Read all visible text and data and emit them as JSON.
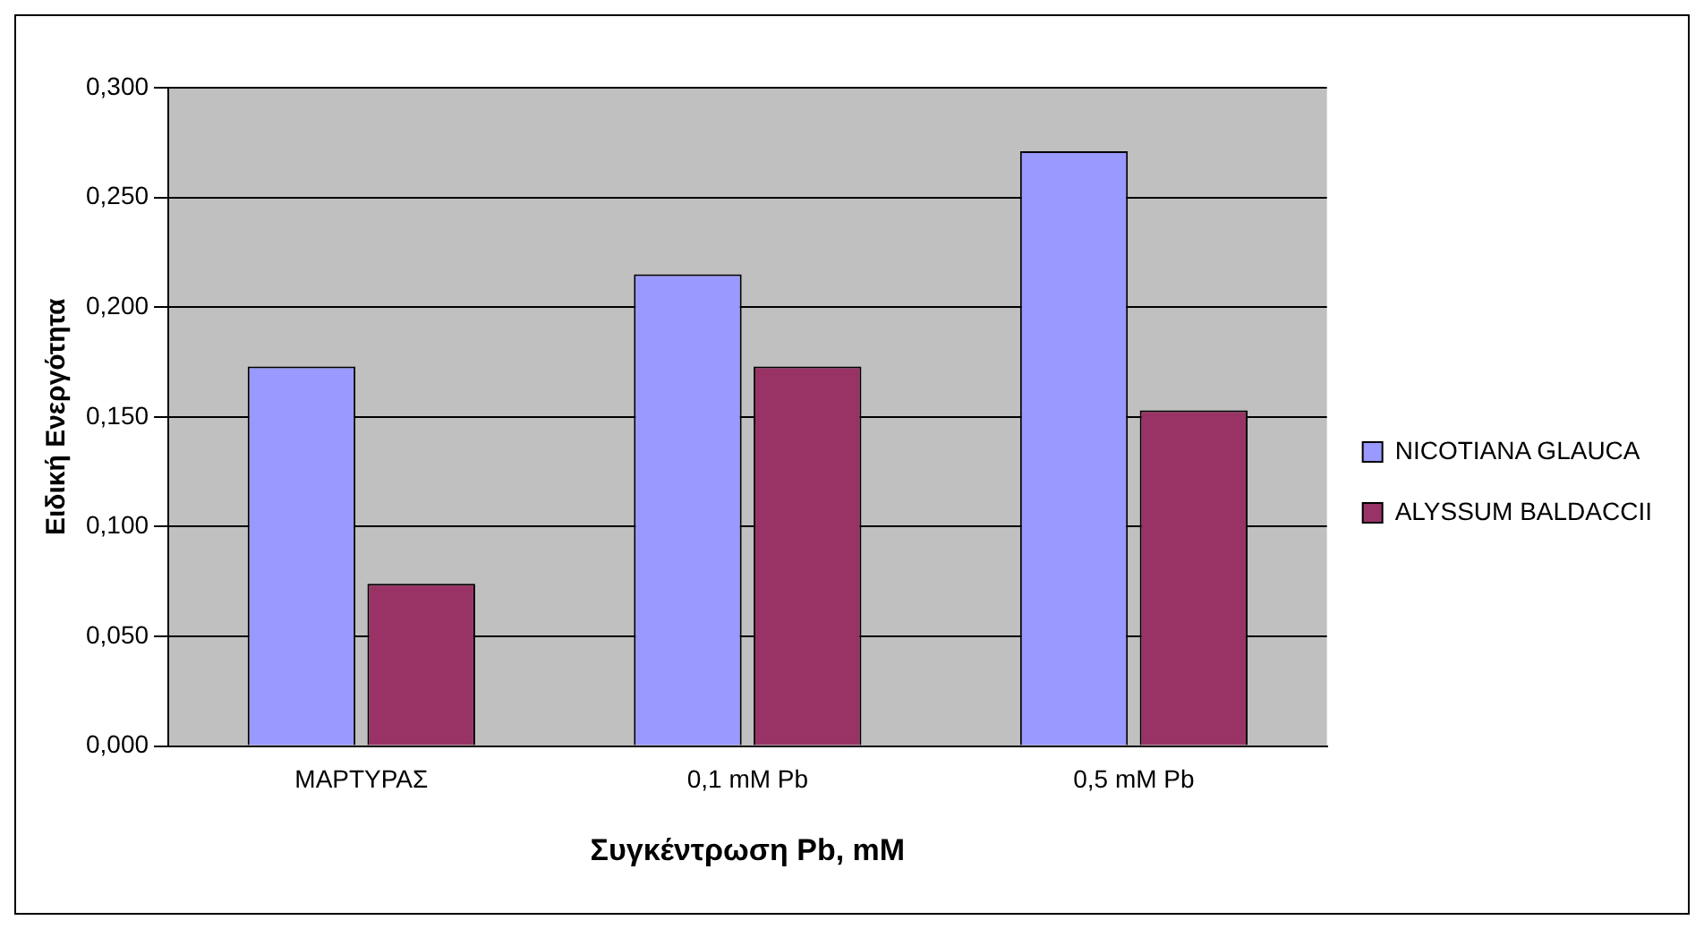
{
  "chart_data": {
    "type": "bar",
    "xlabel": "Συγκέντρωση Pb, mM",
    "ylabel": "Ειδική Ενεργότητα",
    "categories": [
      "ΜΑΡΤΥΡΑΣ",
      "0,1 mM Pb",
      "0,5 mM Pb"
    ],
    "series": [
      {
        "name": "NICOTIANA GLAUCA",
        "color": "#9999ff",
        "values": [
          0.173,
          0.215,
          0.271
        ]
      },
      {
        "name": "ALYSSUM BALDACCII",
        "color": "#993366",
        "values": [
          0.074,
          0.173,
          0.153
        ]
      }
    ],
    "ylim": [
      0,
      0.3
    ],
    "yticks": [
      {
        "value": 0,
        "label": "0,000"
      },
      {
        "value": 0.05,
        "label": "0,050"
      },
      {
        "value": 0.1,
        "label": "0,100"
      },
      {
        "value": 0.15,
        "label": "0,150"
      },
      {
        "value": 0.2,
        "label": "0,200"
      },
      {
        "value": 0.25,
        "label": "0,250"
      },
      {
        "value": 0.3,
        "label": "0,300"
      }
    ],
    "grid": "y",
    "legend": "right"
  }
}
